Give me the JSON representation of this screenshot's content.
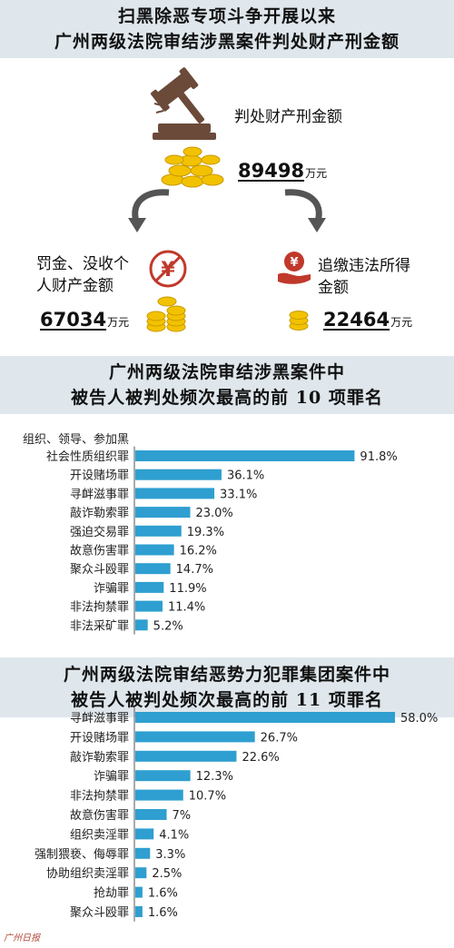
{
  "header1": {
    "line1": "扫黑除恶专项斗争开展以来",
    "line2": "广州两级法院审结涉黑案件判处财产刑金额"
  },
  "total": {
    "label": "判处财产刑金额",
    "amount": "89498",
    "unit": "万元"
  },
  "left": {
    "label_line1": "罚金、没收个",
    "label_line2": "人财产金额",
    "amount": "67034",
    "unit": "万元"
  },
  "right": {
    "label_line1": "追缴违法所得",
    "label_line2": "金额",
    "amount": "22464",
    "unit": "万元"
  },
  "header2": {
    "line1": "广州两级法院审结涉黑案件中",
    "line2": "被告人被判处频次最高的前 10 项罪名"
  },
  "header3": {
    "line1": "广州两级法院审结恶势力犯罪集团案件中",
    "line2": "被告人被判处频次最高的前 11 项罪名"
  },
  "colors": {
    "bar": "#2e9fd0",
    "band": "#dfe7ec",
    "coin": "#f2c200",
    "stamp": "#c0392b"
  },
  "icons": [
    "gavel-icon",
    "coin-stack-icon",
    "curved-arrow-icon",
    "no-money-icon",
    "money-hand-icon"
  ],
  "chart_data": [
    {
      "type": "bar",
      "orientation": "horizontal",
      "categories": [
        "组织、领导、参加黑社会性质组织罪",
        "开设赌场罪",
        "寻衅滋事罪",
        "敲诈勒索罪",
        "强迫交易罪",
        "故意伤害罪",
        "聚众斗殴罪",
        "诈骗罪",
        "非法拘禁罪",
        "非法采矿罪"
      ],
      "category_lines": [
        [
          "组织、领导、参加黑",
          "社会性质组织罪"
        ],
        [
          "开设赌场罪"
        ],
        [
          "寻衅滋事罪"
        ],
        [
          "敲诈勒索罪"
        ],
        [
          "强迫交易罪"
        ],
        [
          "故意伤害罪"
        ],
        [
          "聚众斗殴罪"
        ],
        [
          "诈骗罪"
        ],
        [
          "非法拘禁罪"
        ],
        [
          "非法采矿罪"
        ]
      ],
      "values": [
        91.8,
        36.1,
        33.1,
        23.0,
        19.3,
        16.2,
        14.7,
        11.9,
        11.4,
        5.2
      ],
      "labels": [
        "91.8%",
        "36.1%",
        "33.1%",
        "23.0%",
        "19.3%",
        "16.2%",
        "14.7%",
        "11.9%",
        "11.4%",
        "5.2%"
      ],
      "xlim": [
        0,
        100
      ]
    },
    {
      "type": "bar",
      "orientation": "horizontal",
      "categories": [
        "寻衅滋事罪",
        "开设赌场罪",
        "敲诈勒索罪",
        "诈骗罪",
        "非法拘禁罪",
        "故意伤害罪",
        "组织卖淫罪",
        "强制猥亵、侮辱罪",
        "协助组织卖淫罪",
        "抢劫罪",
        "聚众斗殴罪"
      ],
      "category_lines": [
        [
          "寻衅滋事罪"
        ],
        [
          "开设赌场罪"
        ],
        [
          "敲诈勒索罪"
        ],
        [
          "诈骗罪"
        ],
        [
          "非法拘禁罪"
        ],
        [
          "故意伤害罪"
        ],
        [
          "组织卖淫罪"
        ],
        [
          "强制猥亵、侮辱罪"
        ],
        [
          "协助组织卖淫罪"
        ],
        [
          "抢劫罪"
        ],
        [
          "聚众斗殴罪"
        ]
      ],
      "values": [
        58.0,
        26.7,
        22.6,
        12.3,
        10.7,
        7,
        4.1,
        3.3,
        2.5,
        1.6,
        1.6
      ],
      "labels": [
        "58.0%",
        "26.7%",
        "22.6%",
        "12.3%",
        "10.7%",
        "7%",
        "4.1%",
        "3.3%",
        "2.5%",
        "1.6%",
        "1.6%"
      ],
      "xlim": [
        0,
        58
      ]
    }
  ]
}
